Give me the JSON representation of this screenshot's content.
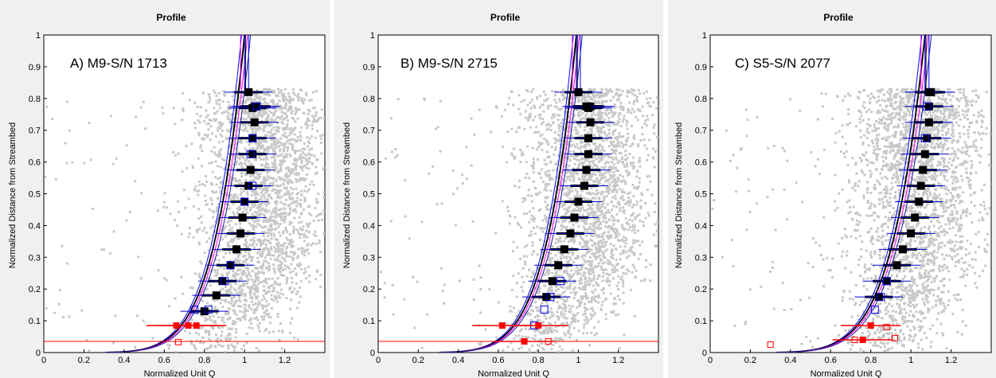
{
  "chart_data": [
    {
      "type": "scatter",
      "title": "Profile",
      "panel_label": "A) M9-S/N 1713",
      "xlabel": "Normalized Unit Q",
      "ylabel": "Normalized Distance from Streambed",
      "xlim": [
        0,
        1.4
      ],
      "ylim": [
        0,
        1
      ],
      "xticks": [
        "0",
        "0.2",
        "0.4",
        "0.6",
        "0.8",
        "1",
        "1.2"
      ],
      "yticks": [
        "0",
        "0.1",
        "0.2",
        "0.3",
        "0.4",
        "0.5",
        "0.6",
        "0.7",
        "0.8",
        "0.9",
        "1"
      ],
      "grid": false,
      "scatter_cloud": {
        "color": "#c8c8c8",
        "top": 0.83,
        "center_top": 1.1,
        "center_bottom": 0.72
      },
      "series": [
        {
          "role": "median_black",
          "x": [
            0.8,
            0.86,
            0.89,
            0.93,
            0.96,
            0.98,
            0.99,
            1.0,
            1.02,
            1.03,
            1.04,
            1.04,
            1.05,
            1.06,
            1.05,
            1.04,
            1.02
          ],
          "y": [
            0.13,
            0.18,
            0.225,
            0.275,
            0.325,
            0.375,
            0.425,
            0.475,
            0.525,
            0.575,
            0.625,
            0.675,
            0.725,
            0.775,
            0.775,
            0.77,
            0.82
          ]
        },
        {
          "role": "hollow_blue",
          "x": [
            0.75,
            0.82,
            0.9,
            0.93,
            1.0,
            1.04,
            1.03,
            1.04,
            1.06
          ],
          "y": [
            0.135,
            0.135,
            0.225,
            0.275,
            0.475,
            0.525,
            0.625,
            0.675,
            0.775
          ]
        },
        {
          "role": "near_bed_red",
          "x": [
            0.66,
            0.72,
            0.76
          ],
          "y": [
            0.085,
            0.085,
            0.085
          ]
        },
        {
          "role": "bed_red_hollow",
          "x": [
            0.67
          ],
          "y": [
            0.033
          ]
        }
      ],
      "curves": {
        "x_top": 1.0,
        "x_mid_08": 1.0,
        "horizontal_red_y": 0.035
      }
    },
    {
      "type": "scatter",
      "title": "Profile",
      "panel_label": "B) M9-S/N 2715",
      "xlabel": "Normalized Unit Q",
      "ylabel": "Normalized Distance from Streambed",
      "xlim": [
        0,
        1.4
      ],
      "ylim": [
        0,
        1
      ],
      "xticks": [
        "0",
        "0.2",
        "0.4",
        "0.6",
        "0.8",
        "1",
        "1.2"
      ],
      "yticks": [
        "0",
        "0.1",
        "0.2",
        "0.3",
        "0.4",
        "0.5",
        "0.6",
        "0.7",
        "0.8",
        "0.9",
        "1"
      ],
      "grid": false,
      "scatter_cloud": {
        "color": "#c8c8c8",
        "top": 0.83,
        "center_top": 1.05,
        "center_bottom": 0.7
      },
      "series": [
        {
          "role": "median_black",
          "x": [
            0.84,
            0.87,
            0.9,
            0.93,
            0.96,
            0.98,
            1.0,
            1.03,
            1.04,
            1.05,
            1.05,
            1.06,
            1.05,
            1.06,
            1.05,
            1.04,
            1.0
          ],
          "y": [
            0.175,
            0.225,
            0.275,
            0.325,
            0.375,
            0.425,
            0.475,
            0.525,
            0.575,
            0.625,
            0.675,
            0.725,
            0.775,
            0.775,
            0.77,
            0.775,
            0.82
          ]
        },
        {
          "role": "hollow_blue",
          "x": [
            0.78,
            0.83,
            0.86,
            0.91
          ],
          "y": [
            0.085,
            0.135,
            0.175,
            0.225
          ]
        },
        {
          "role": "near_bed_red",
          "x": [
            0.62,
            0.73,
            0.8
          ],
          "y": [
            0.085,
            0.035,
            0.085
          ]
        },
        {
          "role": "bed_red_hollow",
          "x": [
            0.85
          ],
          "y": [
            0.035
          ]
        }
      ],
      "curves": {
        "x_top": 0.99,
        "x_mid_08": 1.0,
        "horizontal_red_y": 0.035
      }
    },
    {
      "type": "scatter",
      "title": "Profile",
      "panel_label": "C) S5-S/N 2077",
      "xlabel": "Normalized Unit Q",
      "ylabel": "Normalized Distance from Streambed",
      "xlim": [
        0,
        1.4
      ],
      "ylim": [
        0,
        1
      ],
      "xticks": [
        "0",
        "0.2",
        "0.4",
        "0.6",
        "0.8",
        "1",
        "1.2"
      ],
      "yticks": [
        "0",
        "0.1",
        "0.2",
        "0.3",
        "0.4",
        "0.5",
        "0.6",
        "0.7",
        "0.8",
        "0.9",
        "1"
      ],
      "grid": false,
      "scatter_cloud": {
        "color": "#c8c8c8",
        "top": 0.83,
        "center_top": 1.05,
        "center_bottom": 0.75
      },
      "series": [
        {
          "role": "median_black",
          "x": [
            0.84,
            0.88,
            0.93,
            0.96,
            1.0,
            1.02,
            1.04,
            1.05,
            1.06,
            1.07,
            1.08,
            1.09,
            1.09,
            1.1,
            1.09
          ],
          "y": [
            0.175,
            0.225,
            0.275,
            0.325,
            0.375,
            0.425,
            0.475,
            0.525,
            0.575,
            0.625,
            0.675,
            0.725,
            0.775,
            0.82,
            0.82
          ]
        },
        {
          "role": "hollow_blue",
          "x": [
            0.82,
            0.85,
            0.88,
            1.07,
            1.08
          ],
          "y": [
            0.135,
            0.175,
            0.225,
            0.675,
            0.775
          ]
        },
        {
          "role": "near_bed_red",
          "x": [
            0.8,
            0.76
          ],
          "y": [
            0.085,
            0.04
          ]
        },
        {
          "role": "bed_red_hollow",
          "x": [
            0.3,
            0.72,
            0.88,
            0.92
          ],
          "y": [
            0.025,
            0.04,
            0.08,
            0.045
          ]
        }
      ],
      "curves": {
        "x_top": 1.07,
        "x_mid_08": 1.08,
        "horizontal_red_y": null
      }
    }
  ]
}
